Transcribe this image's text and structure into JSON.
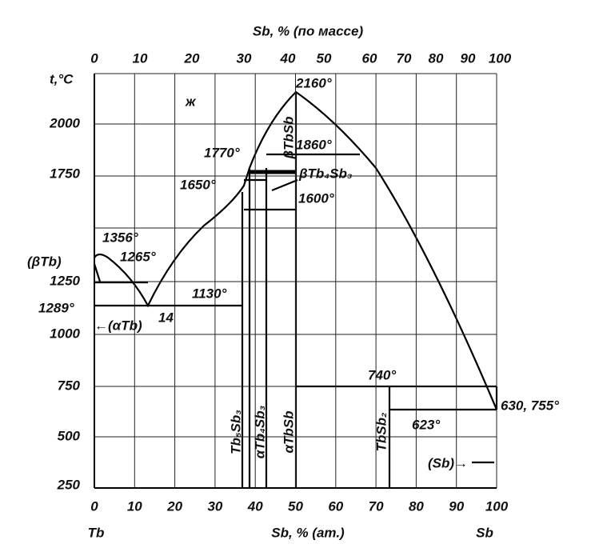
{
  "top_axis_title": "Sb, % (по массе)",
  "y_axis_title": "t,°C",
  "top_ticks": [
    0,
    10,
    20,
    30,
    40,
    50,
    60,
    70,
    80,
    90,
    100
  ],
  "bottom_ticks": [
    0,
    10,
    20,
    30,
    40,
    50,
    60,
    70,
    80,
    90,
    100
  ],
  "y_ticks": [
    2000,
    1750,
    1250,
    1000,
    750,
    500,
    250
  ],
  "x_axis_title": "Sb, % (ат.)",
  "left_end": "Tb",
  "right_end": "Sb",
  "annotations": [
    "ж",
    "2160°",
    "βTbSb",
    "1860°",
    "1770°",
    "1650°",
    "βTb₄Sb₃",
    "1600°",
    "1356°",
    "(βTb)",
    "1265°",
    "1289°",
    "1130°",
    "14",
    "←(αTb)",
    "740°",
    "630, 755°",
    "623°",
    "(Sb)→",
    "Tb₅Sb₃",
    "αTb₄Sb₃",
    "αTbSb",
    "TbSb₂"
  ]
}
